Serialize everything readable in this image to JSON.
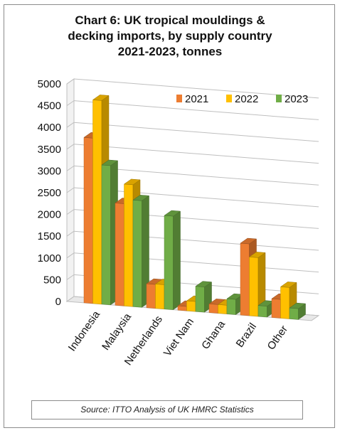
{
  "chart_data": {
    "type": "bar",
    "title": "Chart 6: UK tropical mouldings &\ndecking imports, by supply country\n2021-2023, tonnes",
    "categories": [
      "Indonesia",
      "Malaysia",
      "Netherlands",
      "Viet Nam",
      "Ghana",
      "Brazil",
      "Other"
    ],
    "series": [
      {
        "name": "2021",
        "color": "#ed7d31",
        "values": [
          3800,
          2350,
          550,
          100,
          200,
          1650,
          430
        ]
      },
      {
        "name": "2022",
        "color": "#ffc000",
        "values": [
          4680,
          2800,
          560,
          230,
          200,
          1350,
          720
        ]
      },
      {
        "name": "2023",
        "color": "#70ad47",
        "values": [
          3200,
          2450,
          2150,
          580,
          350,
          250,
          250
        ]
      }
    ],
    "yticks": [
      0,
      500,
      1000,
      1500,
      2000,
      2500,
      3000,
      3500,
      4000,
      4500,
      5000
    ],
    "ylim": [
      0,
      5000
    ],
    "grid": true,
    "legend_position": "top-right"
  },
  "source": "Source: ITTO Analysis of UK HMRC Statistics"
}
